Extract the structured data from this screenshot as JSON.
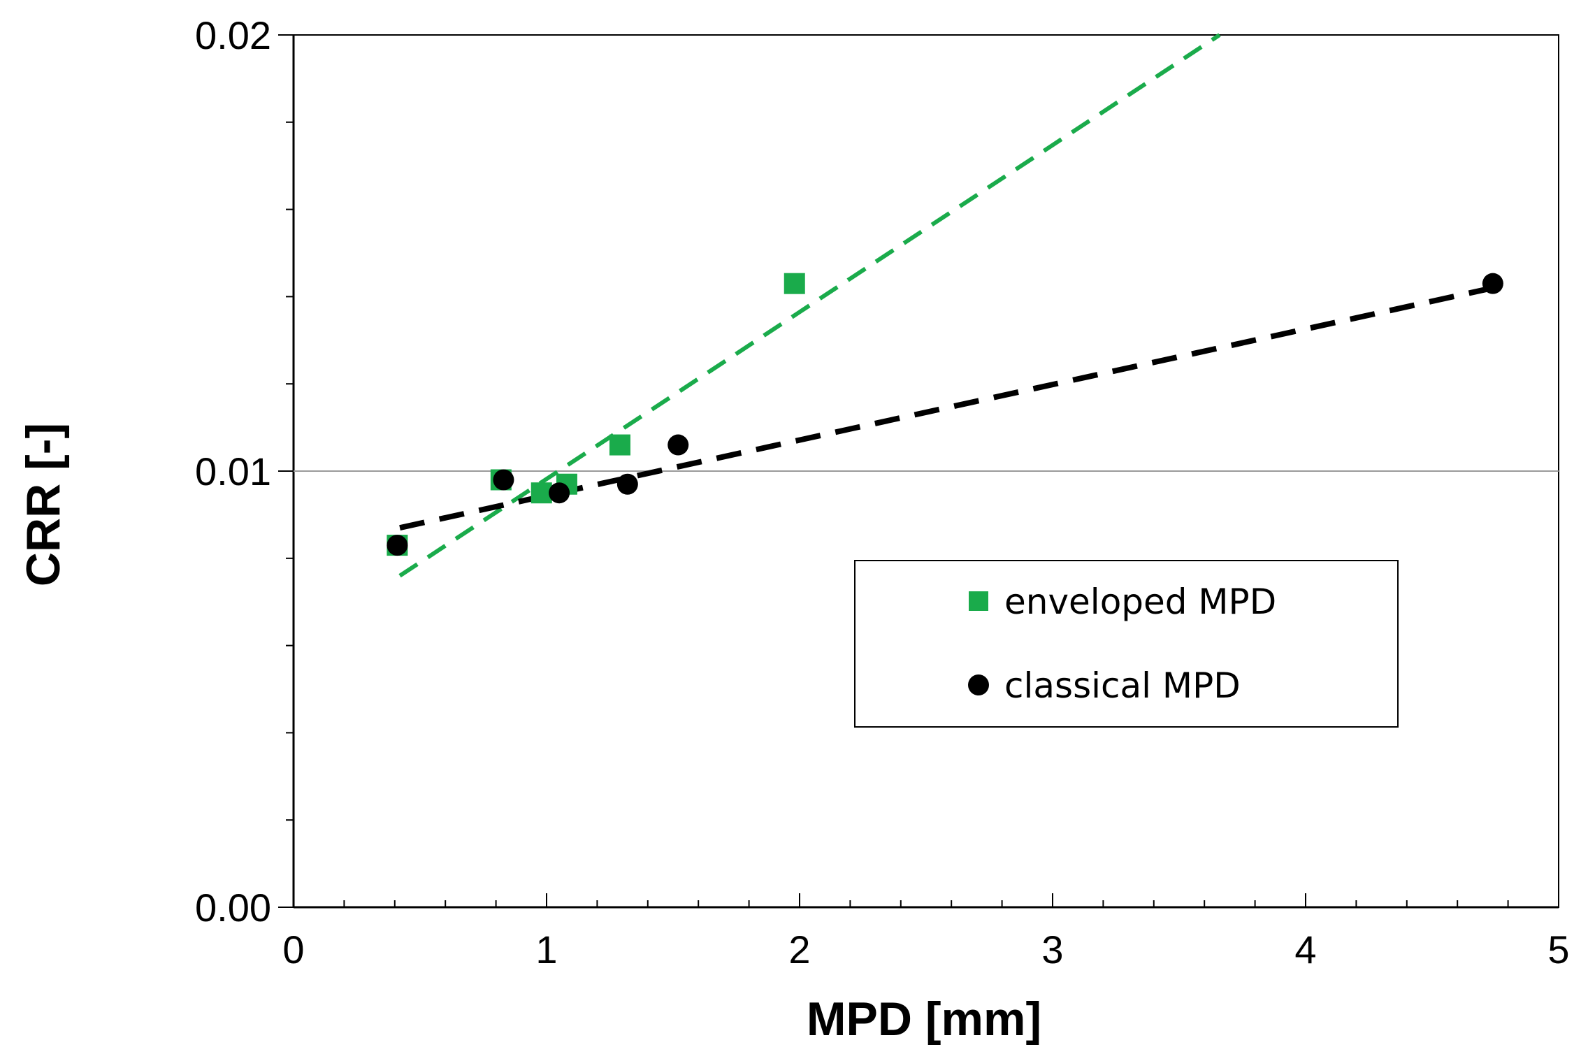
{
  "chart_data": {
    "type": "scatter",
    "title": "",
    "xlabel": "MPD [mm]",
    "ylabel": "CRR [-]",
    "xlim": [
      0,
      5
    ],
    "ylim": [
      0,
      0.02
    ],
    "x_major_ticks": [
      0,
      1,
      2,
      3,
      4,
      5
    ],
    "x_tick_labels": [
      "0",
      "1",
      "2",
      "3",
      "4",
      "5"
    ],
    "x_minor_step": 0.2,
    "y_major_ticks": [
      0,
      0.01,
      0.02
    ],
    "y_tick_labels": [
      "0.00",
      "0.01",
      "0.02"
    ],
    "y_minor_step": 0.002,
    "gridlines_y": [
      0.01
    ],
    "legend_position": "center-right",
    "series": [
      {
        "name": "enveloped MPD",
        "marker": "square",
        "color": "#1aab4b",
        "x": [
          0.41,
          0.82,
          0.98,
          1.08,
          1.29,
          1.98
        ],
        "y": [
          0.0083,
          0.0098,
          0.0095,
          0.0097,
          0.0106,
          0.0143
        ],
        "trendline": {
          "style": "dashed",
          "x": [
            0.42,
            3.66
          ],
          "y": [
            0.0076,
            0.02
          ]
        }
      },
      {
        "name": "classical MPD",
        "marker": "circle",
        "color": "#000000",
        "x": [
          0.41,
          0.83,
          1.05,
          1.32,
          1.52,
          4.74
        ],
        "y": [
          0.0083,
          0.0098,
          0.0095,
          0.0097,
          0.0106,
          0.0143
        ],
        "trendline": {
          "style": "dashed",
          "x": [
            0.42,
            4.74
          ],
          "y": [
            0.0087,
            0.0142
          ]
        }
      }
    ]
  }
}
